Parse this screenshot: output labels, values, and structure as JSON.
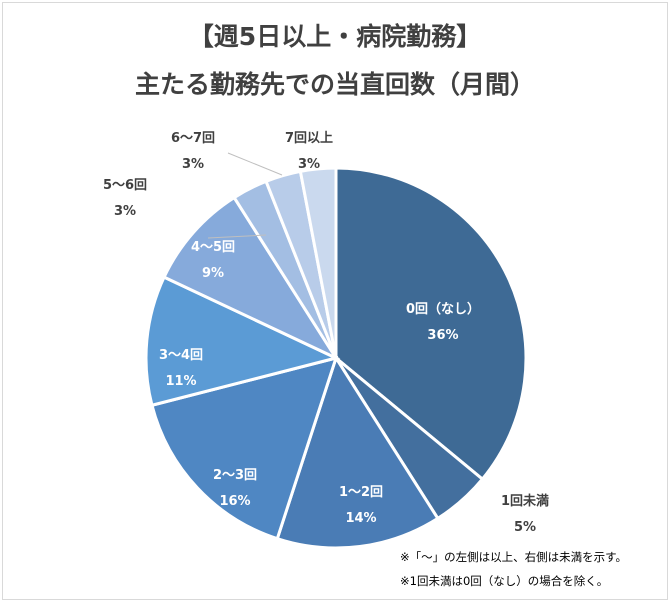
{
  "chart_data": {
    "type": "pie",
    "title": "【週5日以上・病院勤務】",
    "subtitle": "主たる勤務先での当直回数（月間）",
    "categories": [
      "0回（なし）",
      "1回未満",
      "1～2回",
      "2～3回",
      "3～4回",
      "4～5回",
      "5～6回",
      "6～7回",
      "7回以上"
    ],
    "values": [
      36,
      5,
      14,
      16,
      11,
      9,
      3,
      3,
      3
    ],
    "value_labels": [
      "36%",
      "5%",
      "14%",
      "16%",
      "11%",
      "9%",
      "3%",
      "3%",
      "3%"
    ],
    "colors": [
      "#3e6a95",
      "#436f9e",
      "#4a7cb5",
      "#4f87c3",
      "#5b9bd5",
      "#86aadb",
      "#a3bee3",
      "#b8cce9",
      "#cad9ee"
    ],
    "legend": "none"
  },
  "notes": [
    "※「～」の左側は以上、右側は未満を示す。",
    "※1回未満は0回（なし）の場合を除く。"
  ]
}
